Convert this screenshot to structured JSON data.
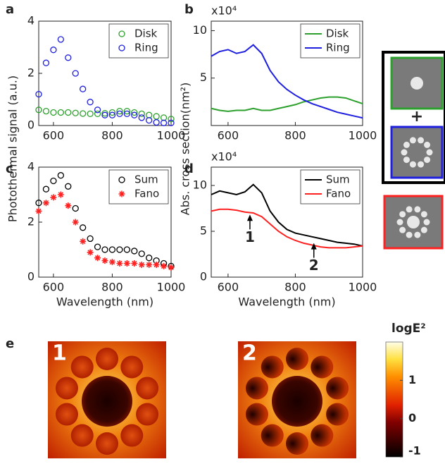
{
  "chart_data": [
    {
      "type": "scatter",
      "panel": "a",
      "ylabel": "Photothermal signal (a.u.)",
      "x": [
        550,
        575,
        600,
        625,
        650,
        675,
        700,
        725,
        750,
        775,
        800,
        825,
        850,
        875,
        900,
        925,
        950,
        975,
        1000
      ],
      "series": [
        {
          "name": "Disk",
          "color": "#2ca02c",
          "marker": "circle",
          "values": [
            0.6,
            0.55,
            0.5,
            0.5,
            0.5,
            0.48,
            0.46,
            0.45,
            0.45,
            0.47,
            0.5,
            0.55,
            0.55,
            0.5,
            0.45,
            0.4,
            0.35,
            0.3,
            0.25
          ]
        },
        {
          "name": "Ring",
          "color": "#1f1fe0",
          "marker": "circle",
          "values": [
            1.2,
            2.4,
            2.9,
            3.3,
            2.6,
            2.0,
            1.4,
            0.9,
            0.6,
            0.4,
            0.4,
            0.45,
            0.45,
            0.4,
            0.3,
            0.2,
            0.12,
            0.1,
            0.1
          ]
        }
      ],
      "xlim": [
        550,
        1000
      ],
      "xticks": [
        600,
        800,
        1000
      ],
      "ylim": [
        0,
        4
      ],
      "yticks": [
        0,
        2,
        4
      ],
      "legend": "upper right"
    },
    {
      "type": "line",
      "panel": "b",
      "ylabel": "Abs. cross section(nm²)",
      "multiplier": "x10⁴",
      "x": [
        550,
        575,
        600,
        625,
        650,
        675,
        700,
        725,
        750,
        775,
        800,
        825,
        850,
        875,
        900,
        925,
        950,
        975,
        1000
      ],
      "series": [
        {
          "name": "Disk",
          "color": "#2ca02c",
          "values": [
            1.8,
            1.6,
            1.5,
            1.6,
            1.6,
            1.8,
            1.6,
            1.6,
            1.8,
            2.0,
            2.2,
            2.5,
            2.7,
            2.9,
            3.0,
            3.0,
            2.9,
            2.6,
            2.3
          ]
        },
        {
          "name": "Ring",
          "color": "#1f1fe0",
          "values": [
            7.3,
            7.8,
            8.0,
            7.6,
            7.8,
            8.5,
            7.6,
            5.8,
            4.6,
            3.8,
            3.2,
            2.7,
            2.3,
            2.0,
            1.7,
            1.4,
            1.2,
            1.0,
            0.8
          ]
        }
      ],
      "xlim": [
        550,
        1000
      ],
      "xticks": [
        600,
        800,
        1000
      ],
      "ylim": [
        0,
        11
      ],
      "yticks": [
        5,
        10
      ],
      "legend": "upper right"
    },
    {
      "type": "scatter",
      "panel": "c",
      "xlabel": "Wavelength (nm)",
      "x": [
        550,
        575,
        600,
        625,
        650,
        675,
        700,
        725,
        750,
        775,
        800,
        825,
        850,
        875,
        900,
        925,
        950,
        975,
        1000
      ],
      "series": [
        {
          "name": "Sum",
          "color": "#000000",
          "marker": "circle",
          "values": [
            2.7,
            3.2,
            3.5,
            3.7,
            3.3,
            2.5,
            1.8,
            1.4,
            1.1,
            1.0,
            1.0,
            1.0,
            1.0,
            0.95,
            0.85,
            0.7,
            0.6,
            0.5,
            0.4
          ]
        },
        {
          "name": "Fano",
          "color": "#ff2020",
          "marker": "star",
          "values": [
            2.4,
            2.7,
            2.9,
            3.0,
            2.6,
            2.0,
            1.3,
            0.9,
            0.7,
            0.6,
            0.55,
            0.5,
            0.5,
            0.5,
            0.45,
            0.45,
            0.45,
            0.4,
            0.35
          ]
        }
      ],
      "xlim": [
        550,
        1000
      ],
      "xticks": [
        600,
        800,
        1000
      ],
      "ylim": [
        0,
        4
      ],
      "yticks": [
        0,
        2,
        4
      ],
      "legend": "upper right"
    },
    {
      "type": "line",
      "panel": "d",
      "xlabel": "Wavelength (nm)",
      "multiplier": "x10⁴",
      "x": [
        550,
        575,
        600,
        625,
        650,
        675,
        700,
        725,
        750,
        775,
        800,
        825,
        850,
        875,
        900,
        925,
        950,
        975,
        1000
      ],
      "series": [
        {
          "name": "Sum",
          "color": "#000000",
          "values": [
            9.0,
            9.4,
            9.2,
            9.0,
            9.3,
            10.1,
            9.2,
            7.2,
            6.0,
            5.2,
            4.8,
            4.6,
            4.4,
            4.2,
            4.0,
            3.8,
            3.7,
            3.6,
            3.4
          ]
        },
        {
          "name": "Fano",
          "color": "#ff2020",
          "values": [
            7.2,
            7.4,
            7.4,
            7.3,
            7.1,
            7.0,
            6.6,
            5.8,
            5.0,
            4.4,
            4.0,
            3.7,
            3.5,
            3.3,
            3.2,
            3.2,
            3.2,
            3.3,
            3.4
          ]
        }
      ],
      "xlim": [
        550,
        1000
      ],
      "xticks": [
        600,
        800,
        1000
      ],
      "ylim": [
        0,
        12
      ],
      "yticks": [
        0,
        5,
        10
      ],
      "legend": "upper right",
      "annotations": [
        {
          "text": "1",
          "x": 665,
          "y": 6.9
        },
        {
          "text": "2",
          "x": 855,
          "y": 3.8
        }
      ]
    },
    {
      "type": "colorbar",
      "panel": "e",
      "label": "logE²",
      "maps": [
        "1",
        "2"
      ],
      "zlim": [
        -1,
        2
      ],
      "zticks": [
        -1,
        0,
        1
      ]
    }
  ]
}
